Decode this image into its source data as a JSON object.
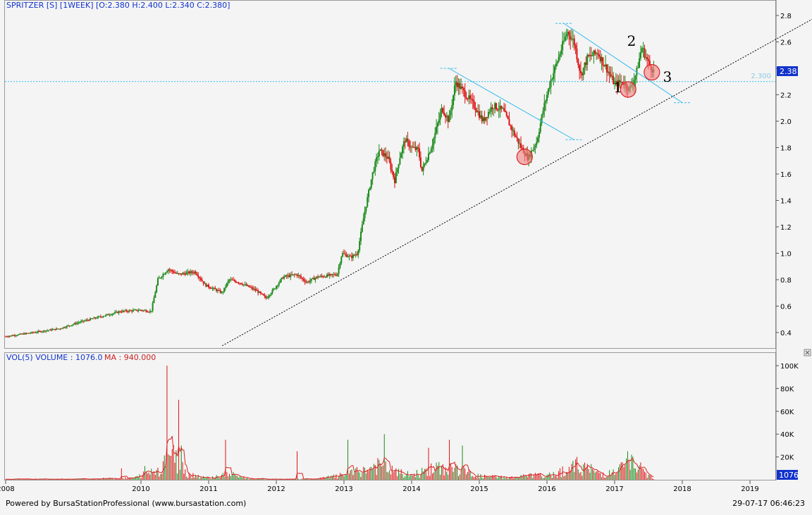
{
  "header": {
    "price_title": "SPRITZER [S] [1WEEK] [O:2.380 H:2.400 L:2.340 C:2.380]",
    "volume_title": "VOL(5)  VOLUME : 1076.0",
    "ma_title": "MA : 940.000",
    "close_badge": "2.38",
    "volume_badge": "1076"
  },
  "footer": {
    "powered_by": "Powered by BursaStationProfessional (www.bursastation.com)",
    "timestamp": "29-07-17 06:46:23"
  },
  "colors": {
    "up": "#1a8a1a",
    "down": "#dd1111",
    "channel": "#33bbee",
    "trendline": "#000000",
    "marker_fill": "#f08080",
    "marker_stroke": "#dd2222",
    "badge_bg": "#1133cc",
    "title_text": "#1133cc",
    "ma_text": "#cc2222"
  },
  "chart_data": [
    {
      "type": "candlestick",
      "timeframe": "1WEEK",
      "x_ticks": [
        "2008",
        "2010",
        "2011",
        "2012",
        "2013",
        "2014",
        "2015",
        "2016",
        "2017",
        "2018",
        "2019"
      ],
      "x_tick_years": [
        2008.0,
        2010.0,
        2011.0,
        2012.0,
        2013.0,
        2014.0,
        2015.0,
        2016.0,
        2017.0,
        2018.0,
        2019.0
      ],
      "y_ticks": [
        "0.4",
        "0.6",
        "0.8",
        "1.0",
        "1.2",
        "1.4",
        "1.6",
        "1.8",
        "2.0",
        "2.2",
        "2.4",
        "2.6",
        "2.8"
      ],
      "ylim": [
        0.3,
        2.9
      ],
      "xlim": [
        2008.0,
        2020.2
      ],
      "grid": false,
      "last_bar": {
        "open": 2.38,
        "high": 2.4,
        "low": 2.34,
        "close": 2.38
      },
      "price_path": [
        [
          2008.0,
          0.37
        ],
        [
          2008.4,
          0.4
        ],
        [
          2008.8,
          0.43
        ],
        [
          2009.1,
          0.48
        ],
        [
          2009.4,
          0.52
        ],
        [
          2009.7,
          0.56
        ],
        [
          2010.0,
          0.57
        ],
        [
          2010.15,
          0.56
        ],
        [
          2010.25,
          0.8
        ],
        [
          2010.4,
          0.88
        ],
        [
          2010.55,
          0.84
        ],
        [
          2010.8,
          0.86
        ],
        [
          2010.95,
          0.76
        ],
        [
          2011.2,
          0.7
        ],
        [
          2011.3,
          0.8
        ],
        [
          2011.45,
          0.78
        ],
        [
          2011.7,
          0.72
        ],
        [
          2011.85,
          0.66
        ],
        [
          2011.95,
          0.72
        ],
        [
          2012.1,
          0.82
        ],
        [
          2012.3,
          0.84
        ],
        [
          2012.45,
          0.78
        ],
        [
          2012.6,
          0.82
        ],
        [
          2012.9,
          0.84
        ],
        [
          2012.97,
          1.0
        ],
        [
          2013.1,
          0.97
        ],
        [
          2013.2,
          1.0
        ],
        [
          2013.3,
          1.3
        ],
        [
          2013.42,
          1.6
        ],
        [
          2013.52,
          1.78
        ],
        [
          2013.65,
          1.72
        ],
        [
          2013.75,
          1.55
        ],
        [
          2013.82,
          1.72
        ],
        [
          2013.9,
          1.86
        ],
        [
          2014.0,
          1.8
        ],
        [
          2014.1,
          1.78
        ],
        [
          2014.15,
          1.62
        ],
        [
          2014.3,
          1.82
        ],
        [
          2014.45,
          2.1
        ],
        [
          2014.55,
          2.0
        ],
        [
          2014.65,
          2.3
        ],
        [
          2014.8,
          2.2
        ],
        [
          2014.95,
          2.1
        ],
        [
          2015.05,
          2.0
        ],
        [
          2015.2,
          2.12
        ],
        [
          2015.35,
          2.08
        ],
        [
          2015.5,
          1.92
        ],
        [
          2015.62,
          1.8
        ],
        [
          2015.72,
          1.72
        ],
        [
          2015.85,
          1.85
        ],
        [
          2015.95,
          2.1
        ],
        [
          2016.05,
          2.3
        ],
        [
          2016.15,
          2.45
        ],
        [
          2016.3,
          2.68
        ],
        [
          2016.4,
          2.6
        ],
        [
          2016.5,
          2.35
        ],
        [
          2016.6,
          2.48
        ],
        [
          2016.75,
          2.52
        ],
        [
          2016.9,
          2.38
        ],
        [
          2017.0,
          2.28
        ],
        [
          2017.12,
          2.3
        ],
        [
          2017.22,
          2.24
        ],
        [
          2017.32,
          2.36
        ],
        [
          2017.4,
          2.56
        ],
        [
          2017.5,
          2.44
        ],
        [
          2017.58,
          2.38
        ]
      ],
      "volume_path": [
        [
          2008.0,
          0.5
        ],
        [
          2009.0,
          0.6
        ],
        [
          2009.9,
          1.5
        ],
        [
          2010.1,
          6
        ],
        [
          2010.3,
          10
        ],
        [
          2010.4,
          25
        ],
        [
          2010.5,
          18
        ],
        [
          2010.7,
          5
        ],
        [
          2011.0,
          1.5
        ],
        [
          2011.3,
          5
        ],
        [
          2011.6,
          1
        ],
        [
          2012.0,
          0.5
        ],
        [
          2012.6,
          0.8
        ],
        [
          2013.0,
          4
        ],
        [
          2013.3,
          8
        ],
        [
          2013.5,
          12
        ],
        [
          2013.8,
          6
        ],
        [
          2014.0,
          4
        ],
        [
          2014.3,
          9
        ],
        [
          2014.6,
          10
        ],
        [
          2014.8,
          7
        ],
        [
          2015.0,
          3
        ],
        [
          2015.5,
          2
        ],
        [
          2015.8,
          4
        ],
        [
          2016.0,
          3
        ],
        [
          2016.3,
          9
        ],
        [
          2016.5,
          12
        ],
        [
          2016.8,
          5
        ],
        [
          2017.0,
          6
        ],
        [
          2017.15,
          12
        ],
        [
          2017.3,
          14
        ],
        [
          2017.45,
          5
        ],
        [
          2017.58,
          1.5
        ]
      ],
      "volume_spikes": [
        [
          2009.72,
          10
        ],
        [
          2010.05,
          12
        ],
        [
          2010.38,
          100
        ],
        [
          2010.55,
          70
        ],
        [
          2010.6,
          30
        ],
        [
          2011.25,
          35
        ],
        [
          2012.3,
          25
        ],
        [
          2013.05,
          35
        ],
        [
          2013.6,
          40
        ],
        [
          2014.25,
          28
        ],
        [
          2014.55,
          35
        ],
        [
          2014.75,
          30
        ],
        [
          2016.45,
          20
        ],
        [
          2017.2,
          25
        ],
        [
          2017.25,
          22
        ]
      ],
      "horizontal_level": {
        "label": "2.300",
        "value": 2.3
      },
      "trendline": {
        "p1": [
          2011.2,
          0.3
        ],
        "p2": [
          2020.3,
          2.88
        ]
      },
      "channels": [
        {
          "from": [
            2014.55,
            2.4
          ],
          "to": [
            2016.4,
            1.86
          ]
        },
        {
          "from": [
            2016.25,
            2.74
          ],
          "to": [
            2018.0,
            2.14
          ]
        }
      ],
      "markers": [
        {
          "x": 2015.67,
          "y": 1.73
        },
        {
          "x": 2017.2,
          "y": 2.24
        },
        {
          "x": 2017.55,
          "y": 2.37
        }
      ],
      "annotations": [
        {
          "text": "1",
          "x": 2017.05,
          "y": 2.22
        },
        {
          "text": "2",
          "x": 2017.25,
          "y": 2.57
        },
        {
          "text": "3",
          "x": 2017.78,
          "y": 2.3
        }
      ]
    },
    {
      "type": "bar",
      "title": "VOL(5)",
      "y_ticks": [
        "20K",
        "40K",
        "60K",
        "80K",
        "100K"
      ],
      "y_tick_values": [
        20,
        40,
        60,
        80,
        100
      ],
      "ylim": [
        0,
        105
      ],
      "unit": "K"
    }
  ]
}
